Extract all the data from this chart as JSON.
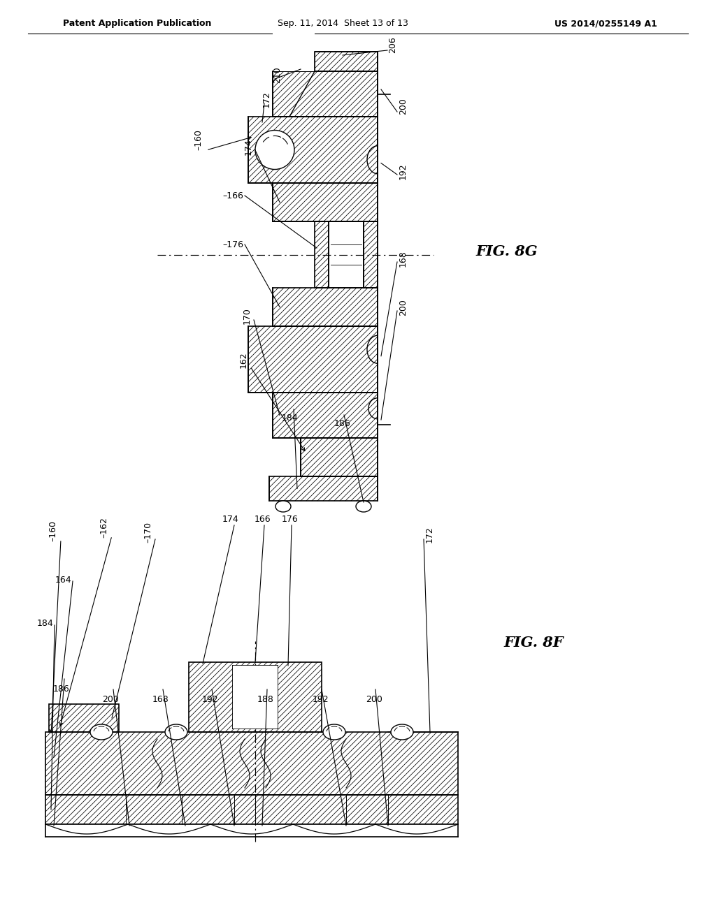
{
  "header_left": "Patent Application Publication",
  "header_center": "Sep. 11, 2014  Sheet 13 of 13",
  "header_right": "US 2014/0255149 A1",
  "fig_top": "FIG. 8G",
  "fig_bot": "FIG. 8F",
  "bg": "#ffffff",
  "lc": "#000000",
  "header_fs": 10,
  "label_fs": 9,
  "fig_fs": 15
}
